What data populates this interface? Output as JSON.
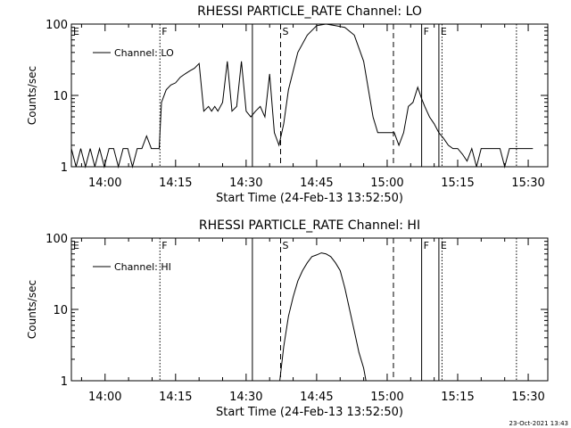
{
  "footer_timestamp": "23-Oct-2021 13:43",
  "chart_data": [
    {
      "type": "line",
      "title": "RHESSI PARTICLE_RATE Channel: LO",
      "xlabel": "Start Time (24-Feb-13 13:52:50)",
      "ylabel": "Counts/sec",
      "yscale": "log",
      "ylim": [
        1,
        100
      ],
      "xlim": [
        "13:52:50",
        "15:34:10"
      ],
      "x_tick_labels": [
        "14:00",
        "14:15",
        "14:30",
        "14:45",
        "15:00",
        "15:15",
        "15:30"
      ],
      "x_ticks": [
        "14:00",
        "14:15",
        "14:30",
        "14:45",
        "15:00",
        "15:15",
        "15:30"
      ],
      "y_tick_labels": [
        "1",
        "10",
        "100"
      ],
      "y_ticks": [
        1,
        10,
        100
      ],
      "legend": {
        "label": "Channel: LO",
        "placement": "top-left"
      },
      "markers": [
        {
          "label": "E",
          "time": "13:52:50",
          "style": "solid"
        },
        {
          "label": "F",
          "time": "14:11:40",
          "style": "dotted"
        },
        {
          "label": "",
          "time": "14:31:20",
          "style": "solid"
        },
        {
          "label": "S",
          "time": "14:37:20",
          "style": "dashed"
        },
        {
          "label": "",
          "time": "15:01:20",
          "style": "dashed"
        },
        {
          "label": "F",
          "time": "15:07:20",
          "style": "solid"
        },
        {
          "label": "E",
          "time": "15:11:00",
          "style": "solid"
        },
        {
          "label": "",
          "time": "15:11:40",
          "style": "dotted"
        },
        {
          "label": "",
          "time": "15:27:30",
          "style": "dotted"
        }
      ],
      "series": [
        {
          "name": "Channel: LO",
          "x": [
            "13:52:50",
            "13:53:50",
            "13:54:50",
            "13:55:50",
            "13:56:50",
            "13:57:50",
            "13:58:50",
            "13:59:50",
            "14:00:50",
            "14:01:50",
            "14:02:50",
            "14:03:50",
            "14:04:50",
            "14:05:50",
            "14:06:50",
            "14:07:50",
            "14:08:50",
            "14:09:50",
            "14:10:50",
            "14:11:30",
            "14:12:00",
            "14:13:00",
            "14:14:00",
            "14:15:00",
            "14:16:00",
            "14:17:00",
            "14:18:00",
            "14:19:00",
            "14:20:00",
            "14:21:00",
            "14:22:00",
            "14:22:40",
            "14:23:20",
            "14:24:00",
            "14:25:00",
            "14:26:00",
            "14:27:00",
            "14:28:00",
            "14:29:00",
            "14:30:00",
            "14:31:00",
            "14:32:00",
            "14:33:00",
            "14:34:00",
            "14:35:00",
            "14:36:00",
            "14:37:00",
            "14:38:00",
            "14:39:00",
            "14:41:00",
            "14:43:00",
            "14:45:00",
            "14:47:00",
            "14:49:00",
            "14:51:00",
            "14:53:00",
            "14:55:00",
            "14:57:00",
            "14:58:00",
            "15:00:00",
            "15:01:30",
            "15:02:30",
            "15:03:30",
            "15:04:30",
            "15:05:30",
            "15:06:30",
            "15:07:20",
            "15:08:00",
            "15:09:00",
            "15:10:00",
            "15:11:00",
            "15:12:00",
            "15:13:00",
            "15:14:00",
            "15:15:00",
            "15:16:00",
            "15:17:00",
            "15:18:00",
            "15:19:00",
            "15:20:00",
            "15:21:00",
            "15:22:00",
            "15:23:00",
            "15:24:00",
            "15:25:00",
            "15:26:00",
            "15:27:00",
            "15:28:00",
            "15:29:00",
            "15:30:00",
            "15:31:00"
          ],
          "y": [
            1.8,
            1,
            1.8,
            1,
            1.8,
            1,
            1.8,
            1,
            1.8,
            1.8,
            1,
            1.8,
            1.8,
            1,
            1.8,
            1.8,
            2.7,
            1.8,
            1.8,
            1.8,
            8,
            12,
            14,
            15,
            18,
            20,
            22,
            24,
            28,
            6,
            7,
            6,
            7,
            6,
            8,
            30,
            6,
            7,
            30,
            6,
            5,
            6,
            7,
            5,
            20,
            3,
            2,
            4,
            12,
            40,
            70,
            95,
            100,
            95,
            90,
            70,
            30,
            5,
            3,
            3,
            3,
            2,
            3,
            7,
            8,
            13,
            9,
            7,
            5,
            4,
            3,
            2.5,
            2,
            1.8,
            1.8,
            1.5,
            1.2,
            1.8,
            1,
            1.8,
            1.8,
            1.8,
            1.8,
            1.8,
            1,
            1.8,
            1.8,
            1.8,
            1.8,
            1.8,
            1.8
          ]
        }
      ]
    },
    {
      "type": "line",
      "title": "RHESSI PARTICLE_RATE Channel: HI",
      "xlabel": "Start Time (24-Feb-13 13:52:50)",
      "ylabel": "Counts/sec",
      "yscale": "log",
      "ylim": [
        1,
        100
      ],
      "xlim": [
        "13:52:50",
        "15:34:10"
      ],
      "x_tick_labels": [
        "14:00",
        "14:15",
        "14:30",
        "14:45",
        "15:00",
        "15:15",
        "15:30"
      ],
      "x_ticks": [
        "14:00",
        "14:15",
        "14:30",
        "14:45",
        "15:00",
        "15:15",
        "15:30"
      ],
      "y_tick_labels": [
        "1",
        "10",
        "100"
      ],
      "y_ticks": [
        1,
        10,
        100
      ],
      "legend": {
        "label": "Channel: HI",
        "placement": "top-left"
      },
      "markers": [
        {
          "label": "E",
          "time": "13:52:50",
          "style": "solid"
        },
        {
          "label": "F",
          "time": "14:11:40",
          "style": "dotted"
        },
        {
          "label": "",
          "time": "14:31:20",
          "style": "solid"
        },
        {
          "label": "S",
          "time": "14:37:20",
          "style": "dashed"
        },
        {
          "label": "",
          "time": "15:01:20",
          "style": "dashed"
        },
        {
          "label": "F",
          "time": "15:07:20",
          "style": "solid"
        },
        {
          "label": "E",
          "time": "15:11:00",
          "style": "solid"
        },
        {
          "label": "",
          "time": "15:11:40",
          "style": "dotted"
        },
        {
          "label": "",
          "time": "15:27:30",
          "style": "dotted"
        }
      ],
      "series": [
        {
          "name": "Channel: HI",
          "x": [
            "14:37:10",
            "14:38:00",
            "14:39:00",
            "14:40:00",
            "14:41:00",
            "14:42:00",
            "14:43:00",
            "14:44:00",
            "14:45:00",
            "14:46:00",
            "14:47:00",
            "14:48:00",
            "14:49:00",
            "14:50:00",
            "14:51:00",
            "14:52:00",
            "14:53:00",
            "14:54:00",
            "14:55:00",
            "14:55:30"
          ],
          "y": [
            1,
            3,
            8,
            15,
            25,
            35,
            45,
            55,
            58,
            62,
            60,
            55,
            45,
            35,
            20,
            10,
            5,
            2.5,
            1.5,
            1
          ]
        }
      ]
    }
  ]
}
